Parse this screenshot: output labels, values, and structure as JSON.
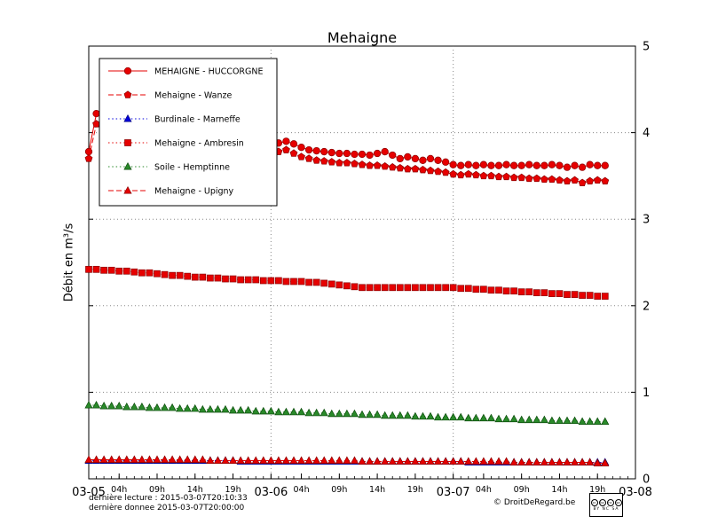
{
  "footer": {
    "line1": "dernière lecture : 2015-03-07T20:10:33",
    "line2": "dernière donnee  2015-03-07T20:00:00",
    "copyright": "© DroitDeRegard.be",
    "cc": {
      "icons": [
        "cc",
        "by",
        "nc",
        "sa"
      ],
      "text": "BY NC SA"
    }
  },
  "chart_data": {
    "type": "line",
    "title": "Mehaigne",
    "xlabel": "",
    "ylabel": "Débit en m³/s",
    "xlim": [
      0,
      72
    ],
    "ylim": [
      0,
      5
    ],
    "x_unit": "hours since 2015-03-05 00:00",
    "grid": {
      "h": [
        1,
        2,
        3,
        4
      ],
      "v": [
        24,
        48
      ]
    },
    "yticks": [
      0,
      1,
      2,
      3,
      4,
      5
    ],
    "ytick_side": "right",
    "legend_position": "upper-left",
    "xticks": [
      {
        "t": 0,
        "label": "03-05",
        "day": true
      },
      {
        "t": 4,
        "label": "04h"
      },
      {
        "t": 9,
        "label": "09h"
      },
      {
        "t": 14,
        "label": "14h"
      },
      {
        "t": 19,
        "label": "19h"
      },
      {
        "t": 24,
        "label": "03-06",
        "day": true
      },
      {
        "t": 28,
        "label": "04h"
      },
      {
        "t": 33,
        "label": "09h"
      },
      {
        "t": 38,
        "label": "14h"
      },
      {
        "t": 43,
        "label": "19h"
      },
      {
        "t": 48,
        "label": "03-07",
        "day": true
      },
      {
        "t": 52,
        "label": "04h"
      },
      {
        "t": 57,
        "label": "09h"
      },
      {
        "t": 62,
        "label": "14h"
      },
      {
        "t": 67,
        "label": "19h"
      },
      {
        "t": 72,
        "label": "03-08",
        "day": true
      }
    ],
    "series": [
      {
        "name": "MEHAIGNE - HUCCORGNE",
        "color": "#e60000",
        "edge": "#8b0000",
        "marker": "circle",
        "line_style": "solid",
        "x_start": 0,
        "x_step": 1,
        "values": [
          3.78,
          4.22,
          4.15,
          4.05,
          4.0,
          3.97,
          3.95,
          3.93,
          3.92,
          3.9,
          3.89,
          3.88,
          3.87,
          3.86,
          3.85,
          3.84,
          3.83,
          3.82,
          3.81,
          3.8,
          3.8,
          3.79,
          3.79,
          3.78,
          3.8,
          3.88,
          3.9,
          3.87,
          3.83,
          3.8,
          3.79,
          3.78,
          3.77,
          3.76,
          3.76,
          3.75,
          3.75,
          3.74,
          3.76,
          3.78,
          3.74,
          3.7,
          3.72,
          3.7,
          3.68,
          3.7,
          3.68,
          3.66,
          3.63,
          3.62,
          3.63,
          3.62,
          3.63,
          3.62,
          3.62,
          3.63,
          3.62,
          3.62,
          3.63,
          3.62,
          3.62,
          3.63,
          3.62,
          3.6,
          3.62,
          3.6,
          3.63,
          3.62,
          3.62
        ]
      },
      {
        "name": "Mehaigne - Wanze",
        "color": "#e60000",
        "edge": "#8b0000",
        "marker": "pentagon",
        "line_style": "dashed",
        "x_start": 0,
        "x_step": 1,
        "values": [
          3.7,
          4.1,
          4.02,
          3.95,
          3.9,
          3.87,
          3.85,
          3.83,
          3.82,
          3.8,
          3.79,
          3.78,
          3.77,
          3.76,
          3.75,
          3.74,
          3.73,
          3.72,
          3.72,
          3.71,
          3.71,
          3.7,
          3.7,
          3.7,
          3.72,
          3.78,
          3.8,
          3.76,
          3.72,
          3.7,
          3.68,
          3.67,
          3.66,
          3.65,
          3.65,
          3.64,
          3.63,
          3.62,
          3.62,
          3.61,
          3.6,
          3.59,
          3.58,
          3.58,
          3.57,
          3.56,
          3.55,
          3.54,
          3.52,
          3.51,
          3.52,
          3.51,
          3.5,
          3.5,
          3.49,
          3.49,
          3.48,
          3.48,
          3.47,
          3.47,
          3.46,
          3.46,
          3.45,
          3.44,
          3.45,
          3.42,
          3.44,
          3.45,
          3.44
        ]
      },
      {
        "name": "Burdinale - Marneffe",
        "color": "#0000dd",
        "edge": "#000080",
        "marker": "triangle",
        "line_style": "dotted",
        "x_start": 0,
        "x_step": 1,
        "values": [
          0.21,
          0.21,
          0.21,
          0.21,
          0.21,
          0.21,
          0.21,
          0.21,
          0.21,
          0.21,
          0.21,
          0.21,
          0.21,
          0.21,
          0.21,
          0.21,
          0.21,
          0.21,
          0.21,
          0.21,
          0.2,
          0.2,
          0.2,
          0.2,
          0.2,
          0.2,
          0.2,
          0.2,
          0.2,
          0.2,
          0.2,
          0.2,
          0.2,
          0.2,
          0.2,
          0.2,
          0.2,
          0.2,
          0.2,
          0.2,
          0.2,
          0.2,
          0.2,
          0.2,
          0.2,
          0.2,
          0.2,
          0.2,
          0.2,
          0.2,
          0.19,
          0.19,
          0.19,
          0.19,
          0.19,
          0.19,
          0.19,
          0.19,
          0.19,
          0.19,
          0.19,
          0.19,
          0.19,
          0.19,
          0.19,
          0.19,
          0.19,
          0.19,
          0.19
        ]
      },
      {
        "name": "Mehaigne - Ambresin",
        "color": "#e60000",
        "edge": "#8b0000",
        "marker": "square",
        "line_style": "dotted",
        "x_start": 0,
        "x_step": 1,
        "values": [
          2.42,
          2.42,
          2.41,
          2.41,
          2.4,
          2.4,
          2.39,
          2.38,
          2.38,
          2.37,
          2.36,
          2.35,
          2.35,
          2.34,
          2.33,
          2.33,
          2.32,
          2.32,
          2.31,
          2.31,
          2.3,
          2.3,
          2.3,
          2.29,
          2.29,
          2.29,
          2.28,
          2.28,
          2.28,
          2.27,
          2.27,
          2.26,
          2.25,
          2.24,
          2.23,
          2.22,
          2.21,
          2.21,
          2.21,
          2.21,
          2.21,
          2.21,
          2.21,
          2.21,
          2.21,
          2.21,
          2.21,
          2.21,
          2.21,
          2.2,
          2.2,
          2.19,
          2.19,
          2.18,
          2.18,
          2.17,
          2.17,
          2.16,
          2.16,
          2.15,
          2.15,
          2.14,
          2.14,
          2.13,
          2.13,
          2.12,
          2.12,
          2.11,
          2.11
        ]
      },
      {
        "name": "Soile - Hemptinne",
        "color": "#2a8a2a",
        "edge": "#0a4a0a",
        "marker": "triangle",
        "line_style": "dotted",
        "x_start": 0,
        "x_step": 1,
        "values": [
          0.85,
          0.85,
          0.84,
          0.84,
          0.84,
          0.83,
          0.83,
          0.83,
          0.82,
          0.82,
          0.82,
          0.82,
          0.81,
          0.81,
          0.81,
          0.8,
          0.8,
          0.8,
          0.8,
          0.79,
          0.79,
          0.79,
          0.78,
          0.78,
          0.78,
          0.77,
          0.77,
          0.77,
          0.77,
          0.76,
          0.76,
          0.76,
          0.75,
          0.75,
          0.75,
          0.75,
          0.74,
          0.74,
          0.74,
          0.73,
          0.73,
          0.73,
          0.73,
          0.72,
          0.72,
          0.72,
          0.71,
          0.71,
          0.71,
          0.71,
          0.7,
          0.7,
          0.7,
          0.7,
          0.69,
          0.69,
          0.69,
          0.68,
          0.68,
          0.68,
          0.68,
          0.67,
          0.67,
          0.67,
          0.67,
          0.66,
          0.66,
          0.66,
          0.66
        ]
      },
      {
        "name": "Mehaigne - Upigny",
        "color": "#e60000",
        "edge": "#8b0000",
        "marker": "triangle",
        "line_style": "dashed",
        "x_start": 0,
        "x_step": 1,
        "values": [
          0.22,
          0.22,
          0.22,
          0.22,
          0.22,
          0.22,
          0.22,
          0.22,
          0.22,
          0.22,
          0.22,
          0.22,
          0.22,
          0.22,
          0.22,
          0.22,
          0.21,
          0.21,
          0.21,
          0.21,
          0.21,
          0.21,
          0.21,
          0.21,
          0.21,
          0.21,
          0.21,
          0.21,
          0.21,
          0.21,
          0.21,
          0.21,
          0.21,
          0.21,
          0.21,
          0.21,
          0.2,
          0.2,
          0.2,
          0.2,
          0.2,
          0.2,
          0.2,
          0.2,
          0.2,
          0.2,
          0.2,
          0.2,
          0.2,
          0.2,
          0.2,
          0.2,
          0.2,
          0.2,
          0.2,
          0.2,
          0.19,
          0.19,
          0.19,
          0.19,
          0.19,
          0.19,
          0.19,
          0.19,
          0.19,
          0.19,
          0.19,
          0.18,
          0.18
        ]
      }
    ]
  }
}
